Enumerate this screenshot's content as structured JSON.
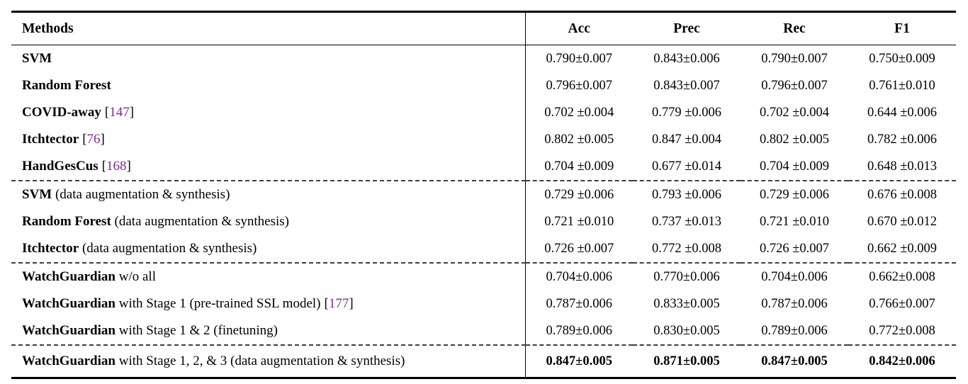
{
  "page": {
    "background": "#ffffff"
  },
  "colors": {
    "text": "#000000",
    "citation_number": "#7c2e8a",
    "rule": "#000000",
    "dashed_separator": "#3f3f3f"
  },
  "table": {
    "header": {
      "method_col": "Methods",
      "metric_cols": [
        "Acc",
        "Prec",
        "Rec",
        "F1"
      ]
    },
    "sections": [
      {
        "name": "baselines",
        "rows": [
          {
            "name": "SVM",
            "desc": "",
            "cite": "",
            "bold_values": false,
            "values": [
              "0.790±0.007",
              "0.843±0.006",
              "0.790±0.007",
              "0.750±0.009"
            ]
          },
          {
            "name": "Random Forest",
            "desc": "",
            "cite": "",
            "bold_values": false,
            "values": [
              "0.796±0.007",
              "0.843±0.007",
              "0.796±0.007",
              "0.761±0.010"
            ]
          },
          {
            "name": "COVID-away",
            "desc": "",
            "cite": "147",
            "bold_values": false,
            "values": [
              "0.702 ±0.004",
              "0.779 ±0.006",
              "0.702 ±0.004",
              "0.644 ±0.006"
            ]
          },
          {
            "name": "Itchtector",
            "desc": "",
            "cite": "76",
            "bold_values": false,
            "values": [
              "0.802 ±0.005",
              "0.847 ±0.004",
              "0.802 ±0.005",
              "0.782 ±0.006"
            ]
          },
          {
            "name": "HandGesCus",
            "desc": "",
            "cite": "168",
            "bold_values": false,
            "values": [
              "0.704 ±0.009",
              "0.677 ±0.014",
              "0.704 ±0.009",
              "0.648 ±0.013"
            ]
          }
        ]
      },
      {
        "name": "baselines-augmented",
        "rows": [
          {
            "name": "SVM",
            "desc": " (data augmentation & synthesis)",
            "cite": "",
            "bold_values": false,
            "values": [
              "0.729 ±0.006",
              "0.793 ±0.006",
              "0.729 ±0.006",
              "0.676 ±0.008"
            ]
          },
          {
            "name": "Random Forest",
            "desc": " (data augmentation & synthesis)",
            "cite": "",
            "bold_values": false,
            "values": [
              "0.721 ±0.010",
              "0.737 ±0.013",
              "0.721 ±0.010",
              "0.670 ±0.012"
            ]
          },
          {
            "name": "Itchtector",
            "desc": " (data augmentation & synthesis)",
            "cite": "",
            "bold_values": false,
            "values": [
              "0.726 ±0.007",
              "0.772 ±0.008",
              "0.726 ±0.007",
              "0.662 ±0.009"
            ]
          }
        ]
      },
      {
        "name": "ablations",
        "rows": [
          {
            "name": "WatchGuardian",
            "desc": " w/o all",
            "cite": "",
            "bold_values": false,
            "values": [
              "0.704±0.006",
              "0.770±0.006",
              "0.704±0.006",
              "0.662±0.008"
            ]
          },
          {
            "name": "WatchGuardian",
            "desc": " with Stage 1 (pre-trained SSL model)",
            "cite": "177",
            "bold_values": false,
            "values": [
              "0.787±0.006",
              "0.833±0.005",
              "0.787±0.006",
              "0.766±0.007"
            ]
          },
          {
            "name": "WatchGuardian",
            "desc": " with Stage 1 & 2 (finetuning)",
            "cite": "",
            "bold_values": false,
            "values": [
              "0.789±0.006",
              "0.830±0.005",
              "0.789±0.006",
              "0.772±0.008"
            ]
          }
        ]
      },
      {
        "name": "full-system",
        "rows": [
          {
            "name": "WatchGuardian",
            "desc": " with Stage 1, 2, & 3 (data augmentation & synthesis)",
            "cite": "",
            "bold_values": true,
            "values": [
              "0.847±0.005",
              "0.871±0.005",
              "0.847±0.005",
              "0.842±0.006"
            ]
          }
        ]
      }
    ]
  }
}
